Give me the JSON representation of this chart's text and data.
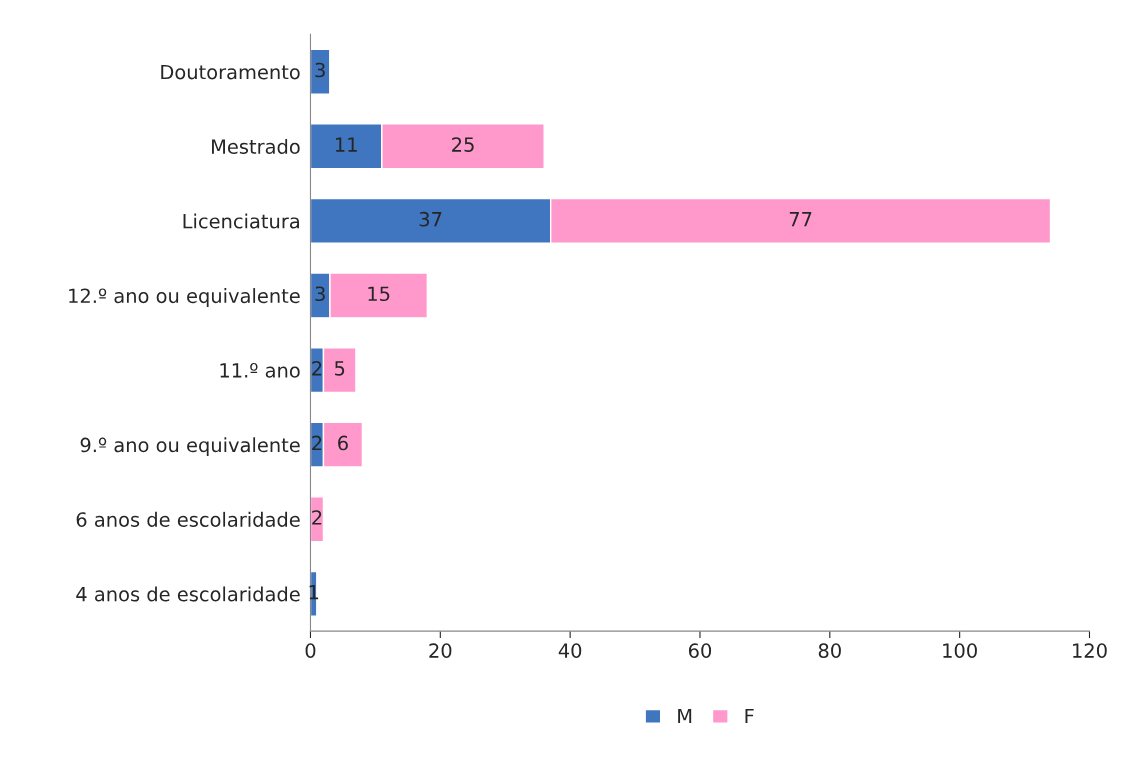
{
  "chart_data": {
    "type": "bar",
    "orientation": "horizontal",
    "stacked": true,
    "categories": [
      "Doutoramento",
      "Mestrado",
      "Licenciatura",
      "12.º ano ou equivalente",
      "11.º ano",
      "9.º ano ou equivalente",
      "6 anos de escolaridade",
      "4 anos de escolaridade"
    ],
    "series": [
      {
        "name": "M",
        "color": "#3f76bf",
        "values": [
          3,
          11,
          37,
          3,
          2,
          2,
          null,
          1
        ]
      },
      {
        "name": "F",
        "color": "#ff99cc",
        "values": [
          null,
          25,
          77,
          15,
          5,
          6,
          2,
          null
        ]
      }
    ],
    "xlim": [
      0,
      120
    ],
    "xticks": [
      0,
      20,
      40,
      60,
      80,
      100,
      120
    ],
    "data_labels": true,
    "grid": false,
    "legend": "bottom"
  }
}
